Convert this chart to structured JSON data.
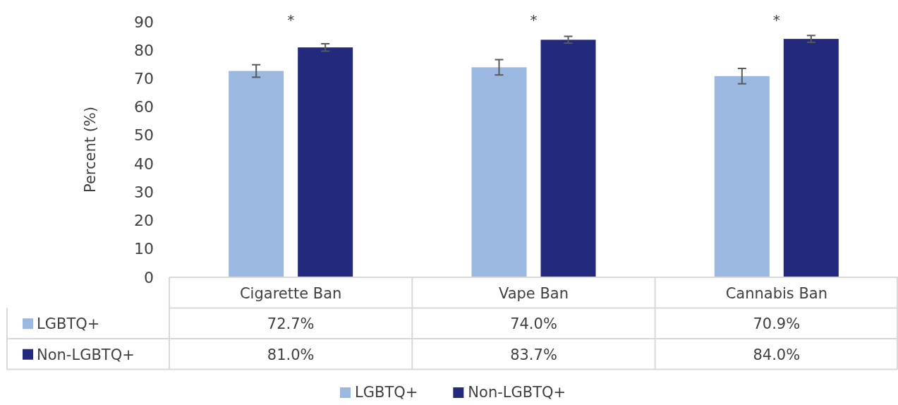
{
  "chart_data": {
    "type": "bar",
    "ylabel": "Percent (%)",
    "categories": [
      "Cigarette Ban",
      "Vape Ban",
      "Cannabis Ban"
    ],
    "series": [
      {
        "name": "LGBTQ+",
        "color": "#9bb9e0",
        "values": [
          72.7,
          74.0,
          70.9
        ],
        "errors": [
          2.2,
          2.7,
          2.7
        ],
        "value_labels": [
          "72.7%",
          "74.0%",
          "70.9%"
        ]
      },
      {
        "name": "Non-LGBTQ+",
        "color": "#232a7e",
        "values": [
          81.0,
          83.7,
          84.0
        ],
        "errors": [
          1.3,
          1.2,
          1.2
        ],
        "value_labels": [
          "81.0%",
          "83.7%",
          "84.0%"
        ]
      }
    ],
    "ylim": [
      0,
      90
    ],
    "yticks": [
      0,
      10,
      20,
      30,
      40,
      50,
      60,
      70,
      80,
      90
    ],
    "grid": false,
    "legend": "bottom",
    "annotations": [
      "*",
      "*",
      "*"
    ]
  }
}
